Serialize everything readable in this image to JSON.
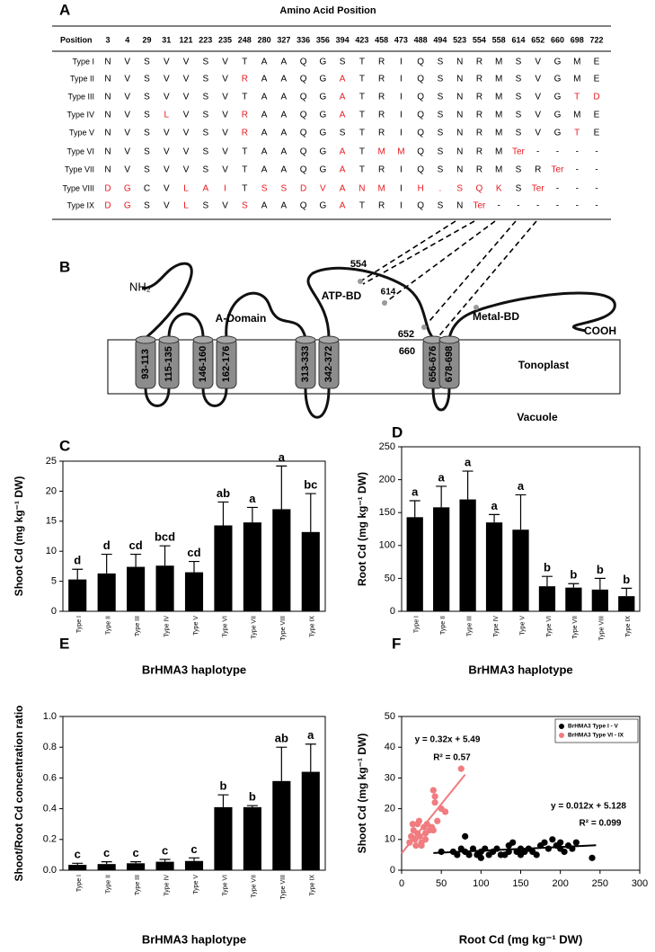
{
  "panel_a": {
    "label": "A",
    "title": "Amino Acid Position",
    "header": "Position",
    "positions": [
      3,
      4,
      29,
      31,
      121,
      223,
      235,
      248,
      280,
      327,
      336,
      356,
      394,
      423,
      458,
      473,
      488,
      494,
      523,
      554,
      558,
      614,
      652,
      660,
      698,
      722
    ],
    "highlight_color": "#e8191f",
    "rows": [
      {
        "name": "Type I",
        "residues": [
          "N",
          "V",
          "S",
          "V",
          "V",
          "S",
          "V",
          "T",
          "A",
          "A",
          "Q",
          "G",
          "S",
          "T",
          "R",
          "I",
          "Q",
          "S",
          "N",
          "R",
          "M",
          "S",
          "V",
          "G",
          "M",
          "E"
        ],
        "highlight": []
      },
      {
        "name": "Type II",
        "residues": [
          "N",
          "V",
          "S",
          "V",
          "V",
          "S",
          "V",
          "R",
          "A",
          "A",
          "Q",
          "G",
          "A",
          "T",
          "R",
          "I",
          "Q",
          "S",
          "N",
          "R",
          "M",
          "S",
          "V",
          "G",
          "M",
          "E"
        ],
        "highlight": [
          7,
          12
        ]
      },
      {
        "name": "Type III",
        "residues": [
          "N",
          "V",
          "S",
          "V",
          "V",
          "S",
          "V",
          "T",
          "A",
          "A",
          "Q",
          "G",
          "A",
          "T",
          "R",
          "I",
          "Q",
          "S",
          "N",
          "R",
          "M",
          "S",
          "V",
          "G",
          "T",
          "D"
        ],
        "highlight": [
          12,
          24,
          25
        ]
      },
      {
        "name": "Type IV",
        "residues": [
          "N",
          "V",
          "S",
          "L",
          "V",
          "S",
          "V",
          "R",
          "A",
          "A",
          "Q",
          "G",
          "A",
          "T",
          "R",
          "I",
          "Q",
          "S",
          "N",
          "R",
          "M",
          "S",
          "V",
          "G",
          "M",
          "E"
        ],
        "highlight": [
          3,
          7,
          12
        ]
      },
      {
        "name": "Type V",
        "residues": [
          "N",
          "V",
          "S",
          "V",
          "V",
          "S",
          "V",
          "R",
          "A",
          "A",
          "Q",
          "G",
          "S",
          "T",
          "R",
          "I",
          "Q",
          "S",
          "N",
          "R",
          "M",
          "S",
          "V",
          "G",
          "T",
          "E"
        ],
        "highlight": [
          7,
          24
        ]
      },
      {
        "name": "Type VI",
        "residues": [
          "N",
          "V",
          "S",
          "V",
          "V",
          "S",
          "V",
          "T",
          "A",
          "A",
          "Q",
          "G",
          "A",
          "T",
          "M",
          "M",
          "Q",
          "S",
          "N",
          "R",
          "M",
          "Ter",
          "-",
          "-",
          "-",
          "-"
        ],
        "highlight": [
          12,
          14,
          15,
          21
        ]
      },
      {
        "name": "Type VII",
        "residues": [
          "N",
          "V",
          "S",
          "V",
          "V",
          "S",
          "V",
          "T",
          "A",
          "A",
          "Q",
          "G",
          "A",
          "T",
          "R",
          "I",
          "Q",
          "S",
          "N",
          "R",
          "M",
          "S",
          "R",
          "Ter",
          "-",
          "-"
        ],
        "highlight": [
          12,
          23
        ]
      },
      {
        "name": "Type VIII",
        "residues": [
          "D",
          "G",
          "C",
          "V",
          "L",
          "A",
          "I",
          "T",
          "S",
          "S",
          "D",
          "V",
          "A",
          "N",
          "M",
          "I",
          "H",
          ".",
          "S",
          "Q",
          "K",
          "S",
          "Ter",
          "-",
          "-",
          "-"
        ],
        "highlight": [
          0,
          1,
          4,
          5,
          6,
          8,
          9,
          10,
          11,
          12,
          13,
          14,
          16,
          17,
          18,
          19,
          20,
          22
        ]
      },
      {
        "name": "Type IX",
        "residues": [
          "D",
          "G",
          "S",
          "V",
          "L",
          "S",
          "V",
          "S",
          "A",
          "A",
          "Q",
          "G",
          "A",
          "T",
          "R",
          "I",
          "Q",
          "S",
          "N",
          "Ter",
          "-",
          "-",
          "-",
          "-",
          "-",
          "-"
        ],
        "highlight": [
          0,
          1,
          4,
          7,
          12,
          19
        ]
      }
    ]
  },
  "panel_b": {
    "label": "B",
    "nh2": "NH₂",
    "cooh": "COOH",
    "a_domain": "A-Domain",
    "atp_bd": "ATP-BD",
    "metal_bd": "Metal-BD",
    "site_554": "554",
    "site_614": "614",
    "site_652": "652",
    "site_660": "660",
    "tonoplast": "Tonoplast",
    "vacuole": "Vacuole",
    "helices": [
      "93-113",
      "115-135",
      "146-160",
      "162-176",
      "313-333",
      "342-372",
      "656-676",
      "678-698"
    ]
  },
  "chart_data": [
    {
      "type": "bar",
      "label": "C",
      "x_label": "BrHMA3 haplotype",
      "y_label": "Shoot Cd (mg kg⁻¹ DW)",
      "categories": [
        "Type I",
        "Type II",
        "Type III",
        "Type IV",
        "Type V",
        "Type VI",
        "Type VII",
        "Type VIII",
        "Type IX"
      ],
      "values": [
        5.3,
        6.3,
        7.4,
        7.6,
        6.5,
        14.3,
        14.8,
        17.0,
        13.2
      ],
      "errors": [
        1.7,
        3.2,
        2.1,
        3.3,
        1.8,
        3.9,
        2.5,
        7.2,
        6.4
      ],
      "significance": [
        "d",
        "d",
        "cd",
        "bcd",
        "cd",
        "ab",
        "a",
        "a",
        "bc"
      ],
      "color": "#000000",
      "ylim": [
        0,
        25
      ],
      "yticks": [
        0,
        5,
        10,
        15,
        20,
        25
      ]
    },
    {
      "type": "bar",
      "label": "D",
      "x_label": "BrHMA3 haplotype",
      "y_label": "Root Cd (mg kg⁻¹ DW)",
      "categories": [
        "Type I",
        "Type II",
        "Type III",
        "Type IV",
        "Type V",
        "Type VI",
        "Type VII",
        "Type VIII",
        "Type IX"
      ],
      "values": [
        143,
        158,
        170,
        135,
        124,
        38,
        36,
        33,
        23
      ],
      "errors": [
        25,
        32,
        43,
        12,
        53,
        15,
        6,
        17,
        12
      ],
      "significance": [
        "a",
        "a",
        "a",
        "a",
        "a",
        "b",
        "b",
        "b",
        "b"
      ],
      "color": "#000000",
      "ylim": [
        0,
        250
      ],
      "yticks": [
        0,
        50,
        100,
        150,
        200,
        250
      ]
    },
    {
      "type": "bar",
      "label": "E",
      "x_label": "BrHMA3 haplotype",
      "y_label": "Shoot/Root Cd concentration ratio",
      "categories": [
        "Type I",
        "Type II",
        "Type III",
        "Type IV",
        "Type V",
        "Type VI",
        "Type VII",
        "Type VIII",
        "Type IX"
      ],
      "values": [
        0.035,
        0.04,
        0.045,
        0.055,
        0.06,
        0.41,
        0.41,
        0.58,
        0.64
      ],
      "errors": [
        0.01,
        0.015,
        0.01,
        0.015,
        0.02,
        0.08,
        0.01,
        0.22,
        0.18
      ],
      "significance": [
        "c",
        "c",
        "c",
        "c",
        "c",
        "b",
        "b",
        "ab",
        "a"
      ],
      "color": "#000000",
      "ylim": [
        0,
        1
      ],
      "yticks": [
        {
          "value": 0,
          "label": "0.0"
        },
        {
          "value": 0.2,
          "label": "0.2"
        },
        {
          "value": 0.4,
          "label": "0.4"
        },
        {
          "value": 0.6,
          "label": "0.6"
        },
        {
          "value": 0.8,
          "label": "0.8"
        },
        {
          "value": 1,
          "label": "1.0"
        }
      ]
    },
    {
      "type": "scatter",
      "label": "F",
      "x_label": "Root Cd (mg kg⁻¹ DW)",
      "y_label": "Shoot Cd (mg kg⁻¹ DW)",
      "xlim": [
        0,
        300
      ],
      "xticks": [
        0,
        50,
        100,
        150,
        200,
        250,
        300
      ],
      "ylim": [
        0,
        50
      ],
      "yticks": [
        0,
        10,
        20,
        30,
        40,
        50
      ],
      "legend": "top-right",
      "series": [
        {
          "name": "BrHMA3 Type I - V",
          "color": "#000000",
          "x": [
            50,
            65,
            70,
            75,
            80,
            80,
            85,
            90,
            95,
            100,
            100,
            105,
            110,
            115,
            120,
            125,
            130,
            135,
            135,
            140,
            145,
            150,
            150,
            155,
            160,
            165,
            170,
            175,
            180,
            185,
            190,
            195,
            200,
            200,
            205,
            210,
            215,
            220,
            240
          ],
          "values": [
            6,
            6,
            5,
            7,
            11,
            6,
            5,
            7,
            5,
            6,
            4,
            7,
            5,
            6,
            7,
            5,
            5,
            8,
            6,
            9,
            6,
            5,
            7,
            6,
            7,
            6,
            5,
            8,
            9,
            7,
            10,
            8,
            9,
            7,
            6,
            8,
            7,
            9,
            4
          ],
          "fit_x": [
            40,
            245
          ],
          "fit_y": [
            5.6,
            8.1
          ],
          "equation": "y = 0.012x + 5.128",
          "r2": "R² = 0.099"
        },
        {
          "name": "BrHMA3 Type VI - IX",
          "color": "#f07c80",
          "x": [
            10,
            12,
            14,
            15,
            17,
            18,
            20,
            20,
            22,
            23,
            25,
            25,
            28,
            30,
            30,
            32,
            35,
            38,
            40,
            40,
            42,
            42,
            45,
            50,
            55,
            75
          ],
          "values": [
            9,
            11,
            15,
            13,
            10,
            8,
            15,
            12,
            16,
            11,
            9,
            8,
            14,
            12,
            10,
            15,
            13,
            14,
            26,
            13,
            24,
            22,
            16,
            20,
            19,
            33
          ],
          "fit_x": [
            0,
            80
          ],
          "fit_y": [
            5.5,
            31.1
          ],
          "equation": "y = 0.32x + 5.49",
          "r2": "R² = 0.57"
        }
      ]
    }
  ]
}
